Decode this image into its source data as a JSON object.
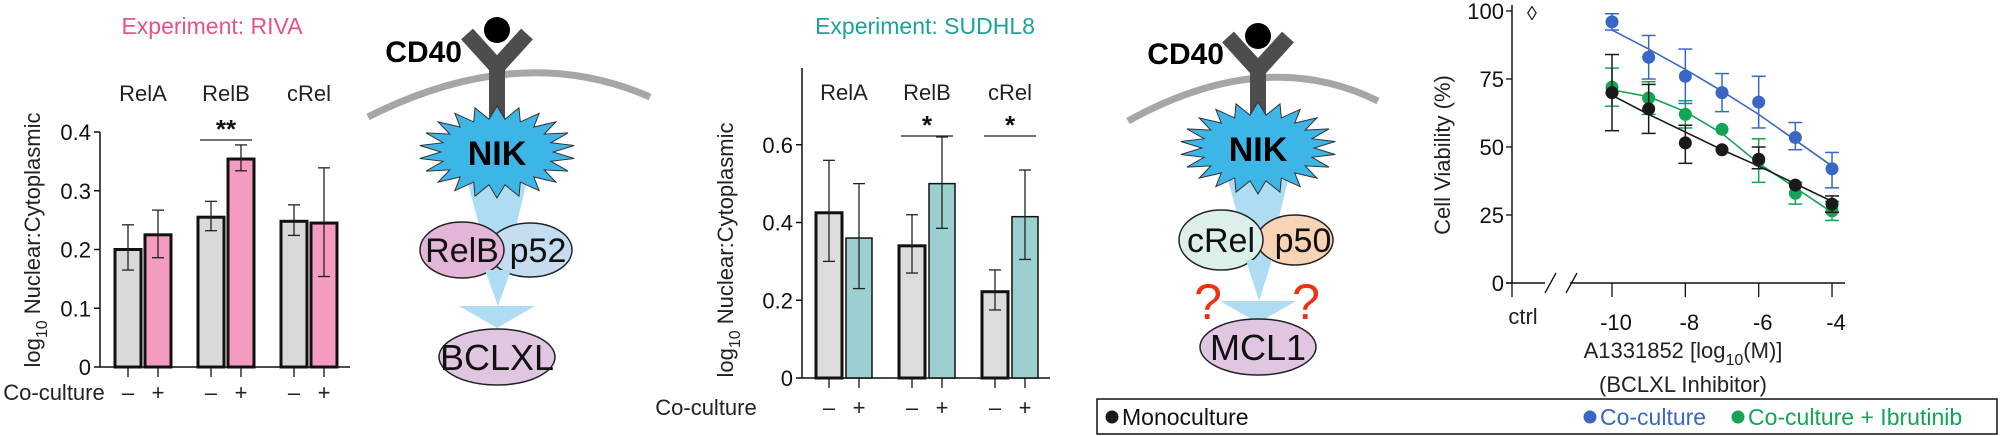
{
  "chart_data": [
    {
      "type": "bar",
      "title": "Experiment: RIVA",
      "title_color": "#e8528a",
      "groups": [
        "RelA",
        "RelB",
        "cRel"
      ],
      "condition_label": "Co-culture",
      "conditions": [
        "–",
        "+"
      ],
      "ylabel": {
        "base": "log",
        "sub": "10",
        "text": " Nuclear:Cytoplasmic"
      },
      "ylim": [
        0,
        0.4
      ],
      "yticks": [
        "0",
        "0.1",
        "0.2",
        "0.3",
        "0.4"
      ],
      "ytick_values": [
        0,
        0.1,
        0.2,
        0.3,
        0.4
      ],
      "colors": {
        "minus": "#d9d9d9",
        "plus": "#f49bc0"
      },
      "series": [
        {
          "condition": "–",
          "values": [
            0.2,
            0.255,
            0.248
          ],
          "err_low": [
            0.165,
            0.232,
            0.224
          ],
          "err_high": [
            0.242,
            0.282,
            0.276
          ]
        },
        {
          "condition": "+",
          "values": [
            0.225,
            0.354,
            0.245
          ],
          "err_low": [
            0.186,
            0.334,
            0.154
          ],
          "err_high": [
            0.267,
            0.378,
            0.339
          ]
        }
      ],
      "significance": [
        {
          "group": "RelB",
          "label": "**"
        }
      ]
    },
    {
      "type": "bar",
      "title": "Experiment: SUDHL8",
      "title_color": "#1aa39a",
      "groups": [
        "RelA",
        "RelB",
        "cRel"
      ],
      "condition_label": "Co-culture",
      "conditions": [
        "–",
        "+"
      ],
      "ylabel": {
        "base": "log",
        "sub": "10",
        "text": " Nuclear:Cytoplasmic"
      },
      "ylim": [
        0,
        0.8
      ],
      "yticks": [
        "0",
        "0.2",
        "0.4",
        "0.6"
      ],
      "ytick_values": [
        0,
        0.2,
        0.4,
        0.6
      ],
      "colors": {
        "minus": "#dcdcdc",
        "plus": "#9ccfcf"
      },
      "series": [
        {
          "condition": "–",
          "values": [
            0.425,
            0.34,
            0.222
          ],
          "err_low": [
            0.3,
            0.27,
            0.175
          ],
          "err_high": [
            0.56,
            0.42,
            0.278
          ]
        },
        {
          "condition": "+",
          "values": [
            0.36,
            0.5,
            0.415
          ],
          "err_low": [
            0.23,
            0.385,
            0.305
          ],
          "err_high": [
            0.5,
            0.62,
            0.535
          ]
        }
      ],
      "significance": [
        {
          "group": "RelB",
          "label": "*"
        },
        {
          "group": "cRel",
          "label": "*"
        }
      ]
    },
    {
      "type": "scatter",
      "ylabel": "Cell Viability (%)",
      "xlabel": {
        "pre": "A1331852 [log",
        "sub": "10",
        "post": "(M)]"
      },
      "xsublabel": "(BCLXL Inhibitor)",
      "ylim": [
        0,
        100
      ],
      "yticks": [
        "0",
        "25",
        "50",
        "75",
        "100"
      ],
      "ytick_values": [
        0,
        25,
        50,
        75,
        100
      ],
      "xlim": [
        -11,
        -4
      ],
      "xticks": [
        "-10",
        "-8",
        "-6",
        "-4"
      ],
      "xtick_values": [
        -10,
        -8,
        -6,
        -4
      ],
      "ctrl_label": "ctrl",
      "ctrl_marker": "◊",
      "x": [
        -10,
        -9,
        -8,
        -7,
        -6,
        -5,
        -4
      ],
      "legend_position": "bottom",
      "series": [
        {
          "name": "Monoculture",
          "color": "#1a1a1a",
          "values": [
            70,
            64,
            51.5,
            49,
            45.5,
            36,
            29
          ],
          "err_low": [
            56,
            55,
            44,
            49,
            42,
            36,
            26
          ],
          "err_high": [
            84,
            73,
            58,
            49,
            50,
            36,
            32
          ],
          "fit": [
            69,
            62,
            55.5,
            49,
            43,
            36.5,
            30
          ]
        },
        {
          "name": "Co-culture",
          "color": "#3a66c4",
          "values": [
            96,
            83,
            76,
            70,
            66.5,
            53.5,
            42
          ],
          "err_low": [
            93,
            75,
            66,
            63,
            57,
            49,
            35
          ],
          "err_high": [
            99,
            91,
            86,
            77,
            76,
            59,
            48
          ],
          "fit": [
            93,
            86,
            78.5,
            70.5,
            62,
            52.5,
            43
          ]
        },
        {
          "name": "Co-culture + Ibrutinib",
          "color": "#13a555",
          "values": [
            72,
            68,
            62,
            56.5,
            45,
            33,
            26.5
          ],
          "err_low": [
            65,
            62,
            57,
            56.5,
            37,
            29,
            23
          ],
          "err_high": [
            79,
            74,
            67,
            56.5,
            53,
            37,
            30
          ],
          "fit": [
            71,
            68.5,
            63,
            55,
            44,
            35,
            26
          ]
        }
      ]
    }
  ],
  "diagrams": [
    {
      "receptor": "CD40",
      "kinase": "NIK",
      "dimer": [
        "RelB",
        "p52"
      ],
      "dimer_colors": [
        "#e3b5d6",
        "#c6dcf0"
      ],
      "target": "BCLXL",
      "target_color": "#e0c6e0"
    },
    {
      "receptor": "CD40",
      "kinase": "NIK",
      "dimer": [
        "cRel",
        "p50"
      ],
      "dimer_colors": [
        "#dcefea",
        "#f8d4b6"
      ],
      "target": "MCL1",
      "target_color": "#e0c6e0",
      "uncertain_mark": "?"
    }
  ]
}
